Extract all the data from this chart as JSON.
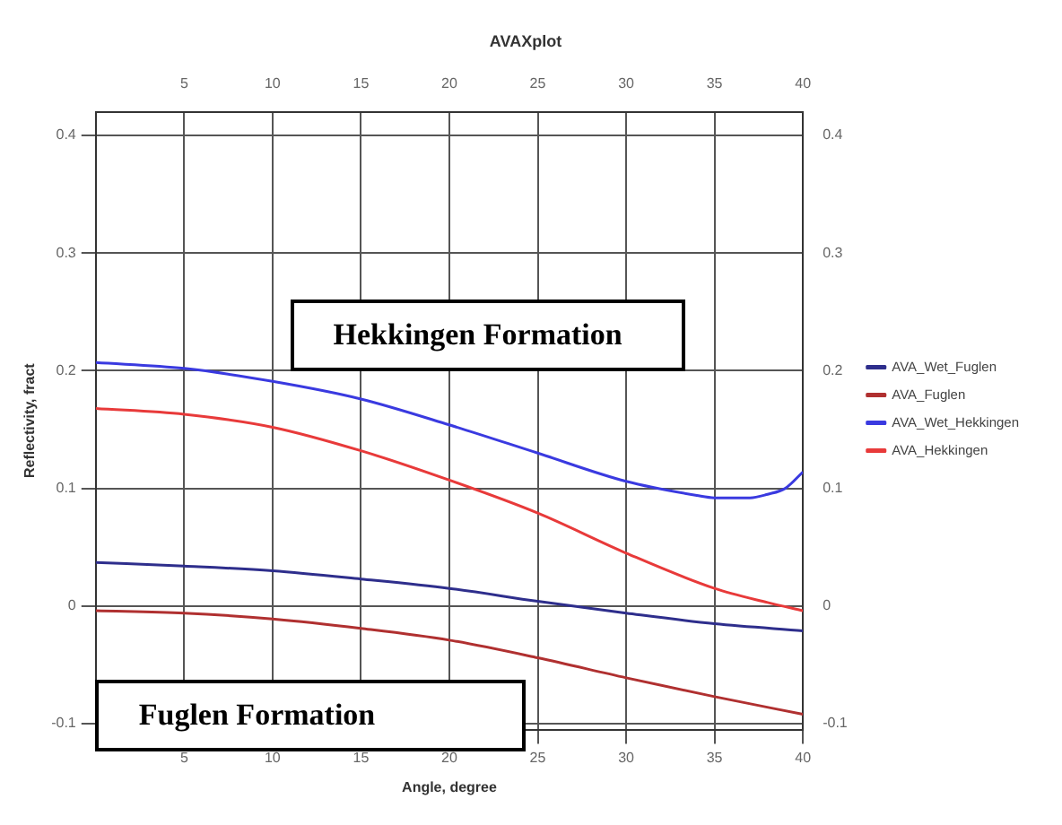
{
  "chart_data": {
    "type": "line",
    "title": "AVAXplot",
    "xlabel": "Angle, degree",
    "ylabel": "Reflectivity, fract",
    "xlim": [
      0,
      40
    ],
    "xticks": [
      5,
      10,
      15,
      20,
      25,
      30,
      35,
      40
    ],
    "x2lim": [
      0,
      40
    ],
    "x2ticks": [
      5,
      10,
      15,
      20,
      25,
      30,
      35,
      40
    ],
    "ylim": [
      -0.105,
      0.42
    ],
    "yticks": [
      -0.1,
      0,
      0.1,
      0.2,
      0.3,
      0.4
    ],
    "y2lim": [
      -0.105,
      0.42
    ],
    "y2ticks": [
      -0.1,
      0,
      0.1,
      0.2,
      0.3,
      0.4
    ],
    "grid": true,
    "legend": "right",
    "marker": "none",
    "line_style": "solid",
    "annotations": [
      "Hekkingen Formation",
      "Fuglen Formation"
    ],
    "series": [
      {
        "name": "AVA_Wet_Fuglen",
        "color": "#2e2e8c",
        "x": [
          0,
          5,
          10,
          15,
          20,
          25,
          30,
          35,
          40
        ],
        "values": [
          0.037,
          0.034,
          0.03,
          0.023,
          0.015,
          0.004,
          -0.006,
          -0.015,
          -0.021
        ]
      },
      {
        "name": "AVA_Fuglen",
        "color": "#b03030",
        "x": [
          0,
          5,
          10,
          15,
          20,
          25,
          30,
          35,
          40
        ],
        "values": [
          -0.004,
          -0.006,
          -0.011,
          -0.019,
          -0.029,
          -0.044,
          -0.061,
          -0.077,
          -0.092
        ]
      },
      {
        "name": "AVA_Wet_Hekkingen",
        "color": "#3a3ae0",
        "x": [
          0,
          5,
          10,
          15,
          20,
          25,
          30,
          34,
          35,
          37,
          38,
          39,
          40
        ],
        "values": [
          0.207,
          0.202,
          0.191,
          0.176,
          0.154,
          0.13,
          0.106,
          0.094,
          0.092,
          0.092,
          0.095,
          0.1,
          0.114
        ]
      },
      {
        "name": "AVA_Hekkingen",
        "color": "#e83a3a",
        "x": [
          0,
          5,
          10,
          15,
          20,
          25,
          30,
          35,
          38,
          40
        ],
        "values": [
          0.168,
          0.163,
          0.152,
          0.132,
          0.107,
          0.079,
          0.045,
          0.015,
          0.003,
          -0.004
        ]
      }
    ]
  }
}
